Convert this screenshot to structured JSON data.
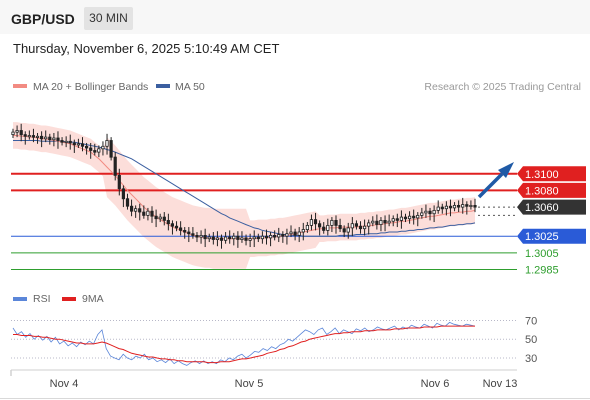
{
  "header": {
    "symbol": "GBP/USD",
    "timeframe": "30 MIN",
    "datetime": "Thursday, November 6, 2025 5:10:49 AM CET"
  },
  "chart_data": {
    "type": "line",
    "legend": [
      {
        "name": "MA 20 + Bollinger Bands",
        "color": "#f28b82"
      },
      {
        "name": "MA 50",
        "color": "#3b5fa0"
      }
    ],
    "legend_position": "top-left",
    "credit": "Research © 2025 Trading Central",
    "x_ticks": [
      "Nov 4",
      "Nov 5",
      "Nov 6",
      "Nov 13"
    ],
    "y_range": [
      1.297,
      1.3185
    ],
    "levels": [
      {
        "value": 1.31,
        "label": "1.3100",
        "color": "#e02020",
        "style": "resistance"
      },
      {
        "value": 1.308,
        "label": "1.3080",
        "color": "#e02020",
        "style": "resistance"
      },
      {
        "value": 1.306,
        "label": "1.3060",
        "color": "#333333",
        "style": "current"
      },
      {
        "value": 1.3025,
        "label": "1.3025",
        "color": "#2a5bd7",
        "style": "pivot"
      },
      {
        "value": 1.3005,
        "label": "1.3005",
        "color": "#2e9e2e",
        "style": "support"
      },
      {
        "value": 1.2985,
        "label": "1.2985",
        "color": "#2e9e2e",
        "style": "support"
      }
    ],
    "price_close": [
      1.315,
      1.3152,
      1.3147,
      1.3145,
      1.3146,
      1.3144,
      1.3145,
      1.3142,
      1.3144,
      1.3141,
      1.3143,
      1.314,
      1.3138,
      1.3139,
      1.3137,
      1.3135,
      1.3136,
      1.3133,
      1.3131,
      1.3128,
      1.3126,
      1.313,
      1.3133,
      1.314,
      1.312,
      1.3098,
      1.3082,
      1.307,
      1.3061,
      1.3055,
      1.3058,
      1.3054,
      1.305,
      1.3055,
      1.3049,
      1.3046,
      1.3048,
      1.3044,
      1.304,
      1.3037,
      1.3035,
      1.3032,
      1.303,
      1.3028,
      1.3026,
      1.3024,
      1.3026,
      1.3022,
      1.3024,
      1.3021,
      1.3023,
      1.302,
      1.3024,
      1.3022,
      1.3025,
      1.3021,
      1.3023,
      1.302,
      1.3022,
      1.3024,
      1.3022,
      1.3025,
      1.3023,
      1.3026,
      1.3024,
      1.3027,
      1.3025,
      1.3028,
      1.303,
      1.3026,
      1.303,
      1.3033,
      1.3038,
      1.3045,
      1.304,
      1.3036,
      1.3032,
      1.3038,
      1.3044,
      1.3038,
      1.3034,
      1.303,
      1.3035,
      1.304,
      1.3037,
      1.3034,
      1.3037,
      1.3041,
      1.3043,
      1.3039,
      1.3044,
      1.3041,
      1.3043,
      1.3046,
      1.3044,
      1.3048,
      1.3046,
      1.3049,
      1.3047,
      1.305,
      1.3053,
      1.3055,
      1.3052,
      1.3056,
      1.306,
      1.3058,
      1.3061,
      1.3059,
      1.3062,
      1.306,
      1.3063,
      1.3061,
      1.3062,
      1.306
    ],
    "ma20": [
      1.3146,
      1.3146,
      1.3145,
      1.3145,
      1.3144,
      1.3144,
      1.3143,
      1.3142,
      1.3142,
      1.3141,
      1.314,
      1.3139,
      1.3138,
      1.3137,
      1.3136,
      1.3134,
      1.3132,
      1.313,
      1.3128,
      1.3126,
      1.3122,
      1.3118,
      1.3113,
      1.3108,
      1.3103,
      1.3098,
      1.3092,
      1.3086,
      1.308,
      1.3075,
      1.307,
      1.3065,
      1.306,
      1.3056,
      1.3052,
      1.3048,
      1.3045,
      1.3042,
      1.3039,
      1.3036,
      1.3034,
      1.3032,
      1.303,
      1.3028,
      1.3026,
      1.3025,
      1.3024,
      1.3023,
      1.3023,
      1.3022,
      1.3022,
      1.3022,
      1.3022,
      1.3022,
      1.3022,
      1.3022,
      1.3022,
      1.3022,
      1.3022,
      1.3022,
      1.3023,
      1.3023,
      1.3023,
      1.3024,
      1.3024,
      1.3025,
      1.3025,
      1.3026,
      1.3027,
      1.3028,
      1.3029,
      1.303,
      1.3031,
      1.3032,
      1.3033,
      1.3034,
      1.3034,
      1.3035,
      1.3035,
      1.3035,
      1.3036,
      1.3036,
      1.3036,
      1.3036,
      1.3036,
      1.3037,
      1.3037,
      1.3038,
      1.3038,
      1.3039,
      1.3039,
      1.304,
      1.3041,
      1.3041,
      1.3042,
      1.3043,
      1.3043,
      1.3044,
      1.3045,
      1.3046,
      1.3047,
      1.3048,
      1.3049,
      1.3049,
      1.305,
      1.3051,
      1.3052,
      1.3053,
      1.3053,
      1.3054,
      1.3054,
      1.3055,
      1.3055,
      1.3056
    ],
    "ma50": [
      1.314,
      1.314,
      1.314,
      1.314,
      1.314,
      1.314,
      1.314,
      1.3139,
      1.3139,
      1.3139,
      1.3139,
      1.3139,
      1.3139,
      1.3138,
      1.3138,
      1.3138,
      1.3137,
      1.3136,
      1.3135,
      1.3134,
      1.3133,
      1.3132,
      1.3131,
      1.3129,
      1.3128,
      1.3126,
      1.3124,
      1.3122,
      1.312,
      1.3118,
      1.3115,
      1.3112,
      1.3109,
      1.3106,
      1.3103,
      1.31,
      1.3097,
      1.3094,
      1.3091,
      1.3088,
      1.3085,
      1.3082,
      1.3079,
      1.3076,
      1.3073,
      1.307,
      1.3067,
      1.3064,
      1.3061,
      1.3058,
      1.3055,
      1.3052,
      1.305,
      1.3047,
      1.3045,
      1.3043,
      1.3041,
      1.3039,
      1.3037,
      1.3035,
      1.3034,
      1.3032,
      1.3031,
      1.303,
      1.3029,
      1.3028,
      1.3027,
      1.3027,
      1.3026,
      1.3026,
      1.3026,
      1.3025,
      1.3025,
      1.3025,
      1.3025,
      1.3025,
      1.3025,
      1.3025,
      1.3025,
      1.3025,
      1.3026,
      1.3026,
      1.3026,
      1.3026,
      1.3027,
      1.3027,
      1.3027,
      1.3028,
      1.3028,
      1.3028,
      1.3029,
      1.3029,
      1.303,
      1.303,
      1.303,
      1.3031,
      1.3031,
      1.3032,
      1.3032,
      1.3033,
      1.3033,
      1.3034,
      1.3035,
      1.3035,
      1.3036,
      1.3036,
      1.3037,
      1.3038,
      1.3038,
      1.3039,
      1.3039,
      1.304,
      1.304,
      1.3041
    ],
    "rsi_panel": {
      "legend": [
        {
          "name": "RSI",
          "color": "#5b86d9"
        },
        {
          "name": "9MA",
          "color": "#e02020"
        }
      ],
      "y_ticks": [
        70,
        50,
        30
      ],
      "y_range": [
        15,
        78
      ],
      "rsi": [
        62,
        55,
        58,
        52,
        56,
        50,
        54,
        49,
        53,
        47,
        52,
        45,
        48,
        43,
        46,
        42,
        47,
        44,
        48,
        45,
        55,
        60,
        40,
        32,
        30,
        28,
        34,
        30,
        28,
        32,
        30,
        34,
        28,
        30,
        26,
        28,
        25,
        29,
        24,
        27,
        24,
        22,
        25,
        27,
        24,
        27,
        24,
        26,
        24,
        28,
        26,
        30,
        28,
        32,
        34,
        30,
        33,
        37,
        36,
        40,
        38,
        42,
        40,
        44,
        46,
        50,
        48,
        52,
        56,
        60,
        58,
        55,
        60,
        62,
        55,
        58,
        62,
        56,
        60,
        58,
        56,
        61,
        59,
        62,
        58,
        60,
        63,
        61,
        60,
        62,
        64,
        60,
        63,
        61,
        65,
        63,
        62,
        66,
        64,
        62,
        67,
        65,
        64,
        68,
        66,
        65,
        64,
        66,
        65,
        64
      ],
      "ma": [
        55,
        55,
        54,
        54,
        54,
        53,
        53,
        52,
        52,
        51,
        50,
        50,
        49,
        48,
        47,
        46,
        46,
        45,
        45,
        45,
        46,
        47,
        46,
        44,
        42,
        40,
        39,
        37,
        35,
        34,
        33,
        32,
        31,
        31,
        30,
        29,
        29,
        28,
        28,
        27,
        27,
        26,
        26,
        26,
        26,
        26,
        25,
        25,
        25,
        26,
        26,
        26,
        27,
        28,
        29,
        29,
        30,
        31,
        32,
        33,
        35,
        36,
        37,
        39,
        40,
        42,
        43,
        45,
        47,
        48,
        50,
        51,
        52,
        53,
        54,
        55,
        56,
        56,
        57,
        57,
        58,
        58,
        58,
        59,
        59,
        59,
        60,
        60,
        60,
        60,
        61,
        61,
        61,
        62,
        62,
        62,
        62,
        63,
        63,
        63,
        63,
        64,
        64,
        64,
        64,
        64,
        64,
        64,
        64,
        64
      ]
    }
  }
}
